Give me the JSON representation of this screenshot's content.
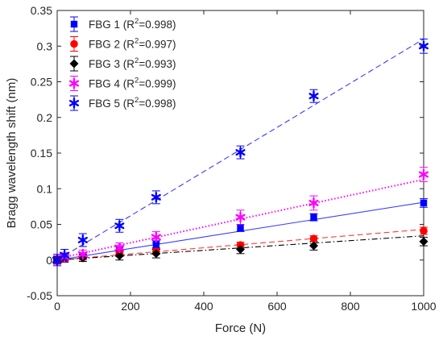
{
  "chart_data": {
    "type": "scatter",
    "xlabel": "Force (N)",
    "ylabel": "Bragg wavelength shift (nm)",
    "xlim": [
      0,
      1000
    ],
    "ylim": [
      -0.05,
      0.35
    ],
    "xticks": [
      0,
      200,
      400,
      600,
      800,
      1000
    ],
    "yticks": [
      -0.05,
      0,
      0.05,
      0.1,
      0.15,
      0.2,
      0.25,
      0.3,
      0.35
    ],
    "xtick_labels": [
      "0",
      "200",
      "400",
      "600",
      "800",
      "1000"
    ],
    "ytick_labels": [
      "-0.05",
      "0",
      "0.05",
      "0.1",
      "0.15",
      "0.2",
      "0.25",
      "0.3",
      "0.35"
    ],
    "grid": false,
    "legend_position": "top-left",
    "series": [
      {
        "legend_prefix": "FBG 1 (R",
        "legend_sup": "2",
        "legend_suffix": "=0.998)",
        "color": "#0000ff",
        "marker": "square",
        "line_style": "solid",
        "line_color": "#3b3bff",
        "x": [
          0,
          20,
          70,
          170,
          270,
          500,
          700,
          1000
        ],
        "y": [
          0.0,
          0.003,
          0.006,
          0.013,
          0.022,
          0.045,
          0.06,
          0.08
        ],
        "err": [
          0.004,
          0.004,
          0.004,
          0.005,
          0.005,
          0.005,
          0.005,
          0.006
        ],
        "fit": [
          [
            0,
            0.0
          ],
          [
            1000,
            0.081
          ]
        ]
      },
      {
        "legend_prefix": "FBG 2 (R",
        "legend_sup": "2",
        "legend_suffix": "=0.997)",
        "color": "#ff0000",
        "marker": "circle",
        "line_style": "dashed",
        "line_color": "#ff3333",
        "x": [
          0,
          20,
          70,
          170,
          270,
          500,
          700,
          1000
        ],
        "y": [
          0.0,
          0.002,
          0.004,
          0.009,
          0.012,
          0.021,
          0.03,
          0.041
        ],
        "err": [
          0.004,
          0.004,
          0.004,
          0.004,
          0.004,
          0.004,
          0.004,
          0.005
        ],
        "fit": [
          [
            0,
            0.0
          ],
          [
            1000,
            0.043
          ]
        ]
      },
      {
        "legend_prefix": "FBG 3 (R",
        "legend_sup": "2",
        "legend_suffix": "=0.993)",
        "color": "#000000",
        "marker": "diamond",
        "line_style": "dashdot",
        "line_color": "#000000",
        "x": [
          0,
          20,
          70,
          170,
          270,
          500,
          700,
          1000
        ],
        "y": [
          0.0,
          0.002,
          0.003,
          0.006,
          0.009,
          0.015,
          0.02,
          0.026
        ],
        "err": [
          0.005,
          0.005,
          0.005,
          0.006,
          0.006,
          0.006,
          0.006,
          0.006
        ],
        "fit": [
          [
            0,
            0.0
          ],
          [
            1000,
            0.034
          ]
        ]
      },
      {
        "legend_prefix": "FBG 4 (R",
        "legend_sup": "2",
        "legend_suffix": "=0.999)",
        "color": "#ff00ff",
        "marker": "star",
        "line_style": "dotted",
        "line_color": "#ff00ff",
        "x": [
          0,
          20,
          70,
          170,
          270,
          500,
          700,
          1000
        ],
        "y": [
          0.0,
          0.004,
          0.008,
          0.017,
          0.032,
          0.06,
          0.08,
          0.12
        ],
        "err": [
          0.006,
          0.006,
          0.006,
          0.007,
          0.008,
          0.01,
          0.01,
          0.01
        ],
        "fit": [
          [
            0,
            0.002
          ],
          [
            1000,
            0.113
          ]
        ]
      },
      {
        "legend_prefix": "FBG 5 (R",
        "legend_sup": "2",
        "legend_suffix": "=0.998)",
        "color": "#0000ff",
        "marker": "star",
        "line_style": "dashed",
        "line_color": "#3b3bff",
        "x": [
          0,
          20,
          70,
          170,
          270,
          500,
          700,
          1000
        ],
        "y": [
          0.0,
          0.007,
          0.028,
          0.048,
          0.088,
          0.151,
          0.23,
          0.3
        ],
        "err": [
          0.008,
          0.008,
          0.009,
          0.009,
          0.009,
          0.009,
          0.009,
          0.01
        ],
        "fit": [
          [
            0,
            0.0
          ],
          [
            1000,
            0.31
          ]
        ]
      }
    ]
  }
}
